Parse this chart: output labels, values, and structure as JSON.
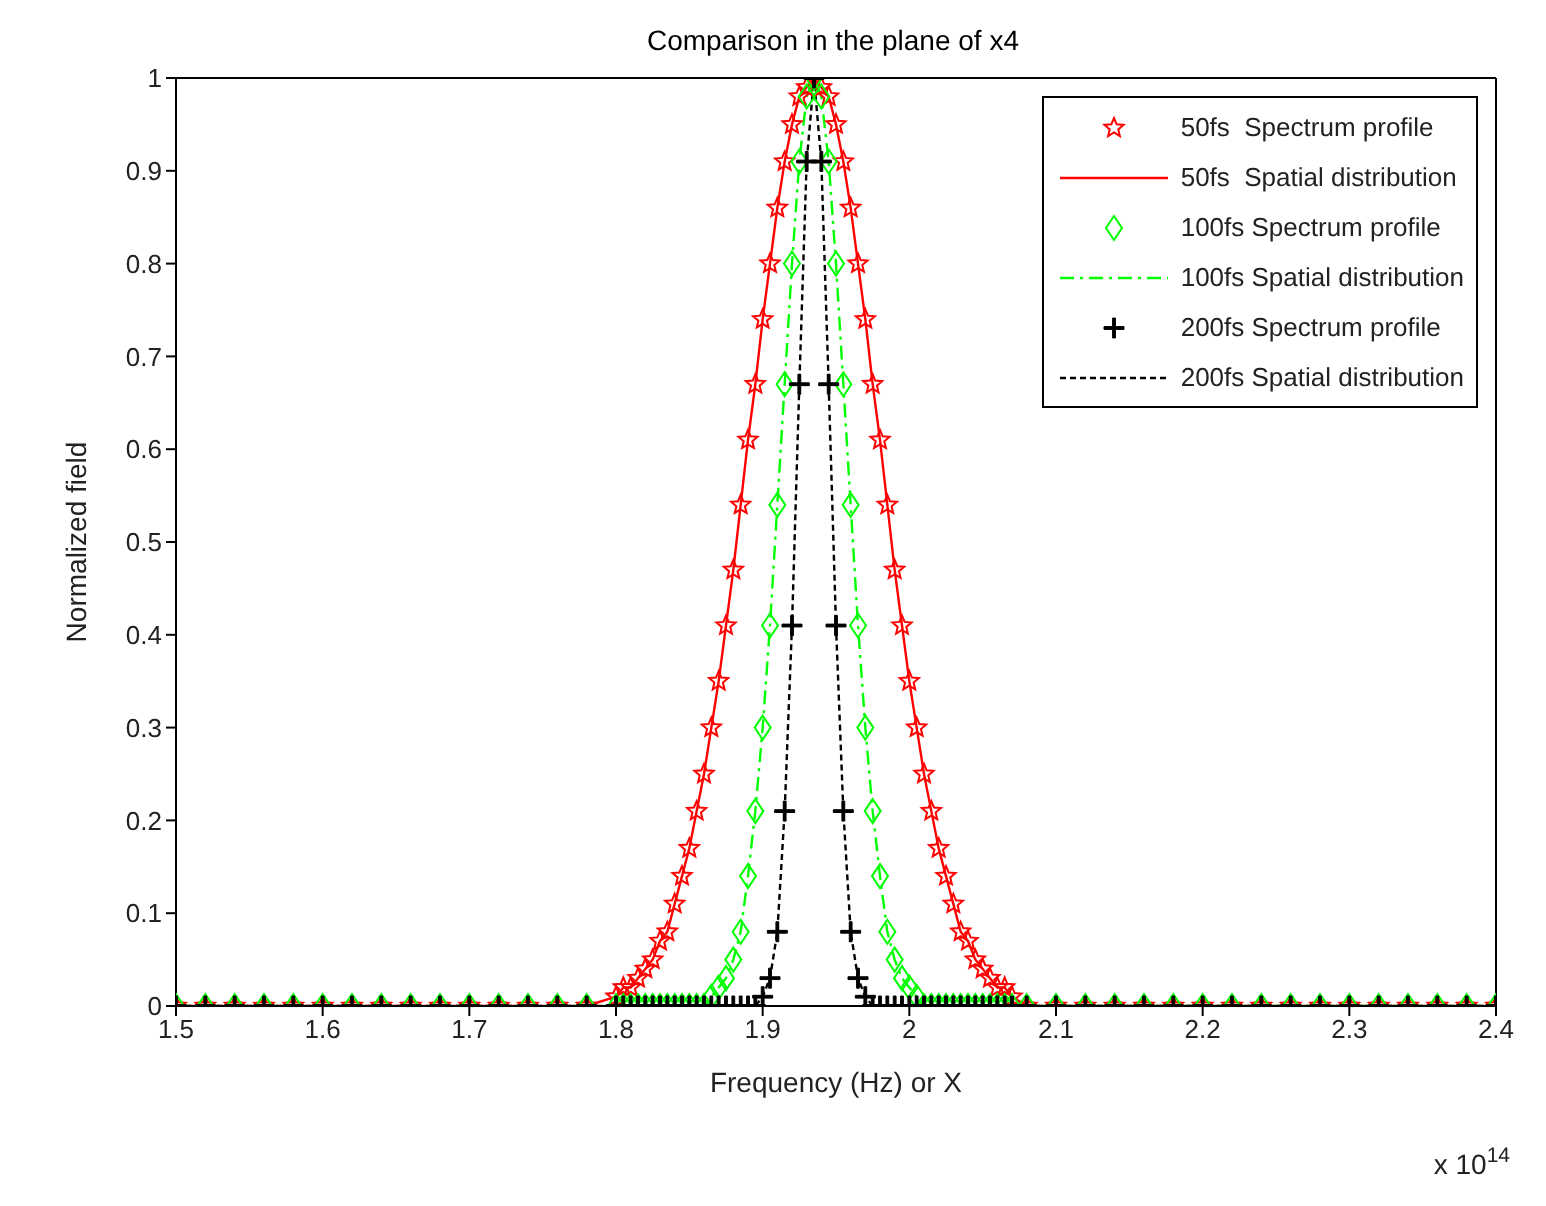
{
  "chart_data": {
    "type": "line",
    "title": "Comparison in the plane of x4",
    "xlabel": "Frequency (Hz) or X",
    "ylabel": "Normalized field",
    "annotations": [
      "x 10$^{14}$"
    ],
    "x": [
      1.5,
      1.52,
      1.54,
      1.56,
      1.58,
      1.6,
      1.62,
      1.64,
      1.66,
      1.68,
      1.7,
      1.72,
      1.74,
      1.76,
      1.78,
      1.8,
      1.805,
      1.81,
      1.815,
      1.82,
      1.825,
      1.83,
      1.835,
      1.84,
      1.845,
      1.85,
      1.855,
      1.86,
      1.865,
      1.87,
      1.875,
      1.88,
      1.885,
      1.89,
      1.895,
      1.9,
      1.905,
      1.91,
      1.915,
      1.92,
      1.925,
      1.93,
      1.935,
      1.94,
      1.945,
      1.95,
      1.955,
      1.96,
      1.965,
      1.97,
      1.975,
      1.98,
      1.985,
      1.99,
      1.995,
      2,
      2.005,
      2.01,
      2.015,
      2.02,
      2.025,
      2.03,
      2.035,
      2.04,
      2.045,
      2.05,
      2.055,
      2.06,
      2.065,
      2.07,
      2.08,
      2.1,
      2.12,
      2.14,
      2.16,
      2.18,
      2.2,
      2.22,
      2.24,
      2.26,
      2.28,
      2.3,
      2.32,
      2.34,
      2.36,
      2.38,
      2.4
    ],
    "series": [
      {
        "name": "50fs  Spectrum profile",
        "type": "scatter",
        "marker": "star",
        "color": "#ff0000",
        "values": [
          0,
          0,
          0,
          0,
          0,
          0,
          0,
          0,
          0,
          0,
          0,
          0,
          0,
          0,
          0,
          0.01,
          0.02,
          0.02,
          0.03,
          0.04,
          0.05,
          0.07,
          0.08,
          0.11,
          0.14,
          0.17,
          0.21,
          0.25,
          0.3,
          0.35,
          0.41,
          0.47,
          0.54,
          0.61,
          0.67,
          0.74,
          0.8,
          0.86,
          0.91,
          0.95,
          0.98,
          0.99,
          1,
          0.99,
          0.98,
          0.95,
          0.91,
          0.86,
          0.8,
          0.74,
          0.67,
          0.61,
          0.54,
          0.47,
          0.41,
          0.35,
          0.3,
          0.25,
          0.21,
          0.17,
          0.14,
          0.11,
          0.08,
          0.07,
          0.05,
          0.04,
          0.03,
          0.02,
          0.02,
          0.01,
          0,
          0,
          0,
          0,
          0,
          0,
          0,
          0,
          0,
          0,
          0,
          0,
          0,
          0,
          0,
          0,
          0
        ]
      },
      {
        "name": "50fs  Spatial distribution",
        "type": "line",
        "line_style": "solid",
        "color": "#ff0000",
        "values": [
          0,
          0,
          0,
          0,
          0,
          0,
          0,
          0,
          0,
          0,
          0,
          0,
          0,
          0,
          0,
          0.01,
          0.02,
          0.02,
          0.03,
          0.04,
          0.05,
          0.07,
          0.08,
          0.11,
          0.14,
          0.17,
          0.21,
          0.25,
          0.3,
          0.35,
          0.41,
          0.47,
          0.54,
          0.61,
          0.67,
          0.74,
          0.8,
          0.86,
          0.91,
          0.95,
          0.98,
          0.99,
          1,
          0.99,
          0.98,
          0.95,
          0.91,
          0.86,
          0.8,
          0.74,
          0.67,
          0.61,
          0.54,
          0.47,
          0.41,
          0.35,
          0.3,
          0.25,
          0.21,
          0.17,
          0.14,
          0.11,
          0.08,
          0.07,
          0.05,
          0.04,
          0.03,
          0.02,
          0.02,
          0.01,
          0,
          0,
          0,
          0,
          0,
          0,
          0,
          0,
          0,
          0,
          0,
          0,
          0,
          0,
          0,
          0,
          0
        ]
      },
      {
        "name": "100fs Spectrum profile",
        "type": "scatter",
        "marker": "diamond",
        "color": "#00ff00",
        "values": [
          0,
          0,
          0,
          0,
          0,
          0,
          0,
          0,
          0,
          0,
          0,
          0,
          0,
          0,
          0,
          0,
          0,
          0,
          0,
          0,
          0,
          0,
          0,
          0,
          0,
          0,
          0,
          0,
          0.01,
          0.02,
          0.03,
          0.05,
          0.08,
          0.14,
          0.21,
          0.3,
          0.41,
          0.54,
          0.67,
          0.8,
          0.91,
          0.98,
          1,
          0.98,
          0.91,
          0.8,
          0.67,
          0.54,
          0.41,
          0.3,
          0.21,
          0.14,
          0.08,
          0.05,
          0.03,
          0.02,
          0.01,
          0,
          0,
          0,
          0,
          0,
          0,
          0,
          0,
          0,
          0,
          0,
          0,
          0,
          0,
          0,
          0,
          0,
          0,
          0,
          0,
          0,
          0,
          0,
          0,
          0,
          0,
          0,
          0,
          0,
          0
        ]
      },
      {
        "name": "100fs Spatial distribution",
        "type": "line",
        "line_style": "dashed",
        "color": "#00ff00",
        "values": [
          0,
          0,
          0,
          0,
          0,
          0,
          0,
          0,
          0,
          0,
          0,
          0,
          0,
          0,
          0,
          0,
          0,
          0,
          0,
          0,
          0,
          0,
          0,
          0,
          0,
          0,
          0,
          0,
          0.01,
          0.02,
          0.03,
          0.05,
          0.08,
          0.14,
          0.21,
          0.3,
          0.41,
          0.54,
          0.67,
          0.8,
          0.91,
          0.98,
          1,
          0.98,
          0.91,
          0.8,
          0.67,
          0.54,
          0.41,
          0.3,
          0.21,
          0.14,
          0.08,
          0.05,
          0.03,
          0.02,
          0.01,
          0,
          0,
          0,
          0,
          0,
          0,
          0,
          0,
          0,
          0,
          0,
          0,
          0,
          0,
          0,
          0,
          0,
          0,
          0,
          0,
          0,
          0,
          0,
          0,
          0,
          0,
          0,
          0,
          0,
          0
        ]
      },
      {
        "name": "200fs Spectrum profile",
        "type": "scatter",
        "marker": "cross",
        "color": "#000000",
        "values": [
          0,
          0,
          0,
          0,
          0,
          0,
          0,
          0,
          0,
          0,
          0,
          0,
          0,
          0,
          0,
          0,
          0,
          0,
          0,
          0,
          0,
          0,
          0,
          0,
          0,
          0,
          0,
          0,
          0,
          0,
          0,
          0,
          0,
          0,
          0,
          0.01,
          0.03,
          0.08,
          0.21,
          0.41,
          0.67,
          0.91,
          1,
          0.91,
          0.67,
          0.41,
          0.21,
          0.08,
          0.03,
          0.01,
          0,
          0,
          0,
          0,
          0,
          0,
          0,
          0,
          0,
          0,
          0,
          0,
          0,
          0,
          0,
          0,
          0,
          0,
          0,
          0,
          0,
          0,
          0,
          0,
          0,
          0,
          0,
          0,
          0,
          0,
          0,
          0,
          0,
          0,
          0,
          0,
          0
        ]
      },
      {
        "name": "200fs Spatial distribution",
        "type": "line",
        "line_style": "dotted",
        "color": "#000000",
        "values": [
          0,
          0,
          0,
          0,
          0,
          0,
          0,
          0,
          0,
          0,
          0,
          0,
          0,
          0,
          0,
          0,
          0,
          0,
          0,
          0,
          0,
          0,
          0,
          0,
          0,
          0,
          0,
          0,
          0,
          0,
          0,
          0,
          0,
          0,
          0,
          0.01,
          0.03,
          0.08,
          0.21,
          0.41,
          0.67,
          0.91,
          1,
          0.91,
          0.67,
          0.41,
          0.21,
          0.08,
          0.03,
          0.01,
          0,
          0,
          0,
          0,
          0,
          0,
          0,
          0,
          0,
          0,
          0,
          0,
          0,
          0,
          0,
          0,
          0,
          0,
          0,
          0,
          0,
          0,
          0,
          0,
          0,
          0,
          0,
          0,
          0,
          0,
          0,
          0,
          0,
          0,
          0,
          0,
          0
        ]
      }
    ],
    "xlim": [
      1.5,
      2.4
    ],
    "xticks": [
      1.5,
      1.6,
      1.7,
      1.8,
      1.9,
      2,
      2.1,
      2.2,
      2.3,
      2.4
    ],
    "ylim": [
      0,
      1
    ],
    "yticks": [
      0,
      0.1,
      0.2,
      0.3,
      0.4,
      0.5,
      0.6,
      0.7,
      0.8,
      0.9,
      1
    ],
    "legend": "top right",
    "grid": false
  }
}
